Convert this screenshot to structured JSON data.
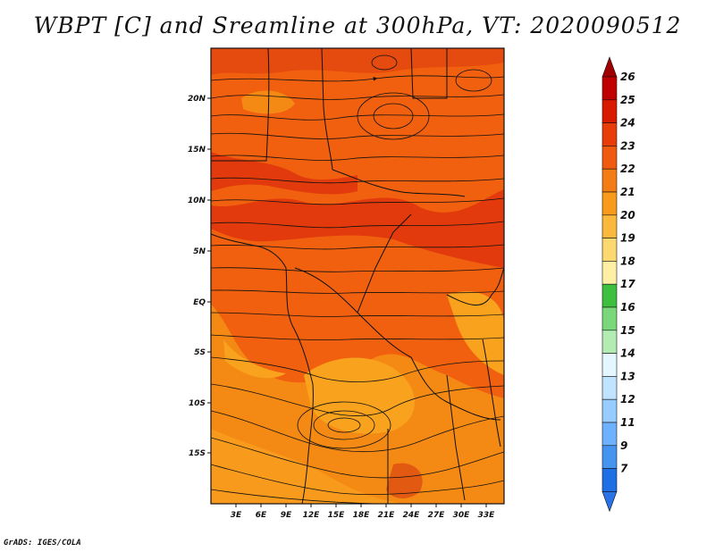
{
  "title": "WBPT [C] and Sreamline at 300hPa, VT: 2020090512",
  "credit": "GrADS: IGES/COLA",
  "map": {
    "lat_labels": [
      "20N",
      "15N",
      "10N",
      "5N",
      "EQ",
      "5S",
      "10S",
      "15S"
    ],
    "lon_labels": [
      "3E",
      "6E",
      "9E",
      "12E",
      "15E",
      "18E",
      "21E",
      "24E",
      "27E",
      "30E",
      "33E"
    ]
  },
  "colorbar": {
    "labels": [
      "26",
      "25",
      "24",
      "23",
      "22",
      "21",
      "20",
      "19",
      "18",
      "17",
      "16",
      "15",
      "14",
      "13",
      "12",
      "11",
      "9",
      "7"
    ],
    "colors": [
      "#c00000",
      "#d81a00",
      "#e83c0a",
      "#f05a10",
      "#f47c14",
      "#f89a1c",
      "#fab93c",
      "#fcd870",
      "#fdf0a4",
      "#3fbf3f",
      "#7ad77a",
      "#b2ecb2",
      "#e4f6ff",
      "#c0e4ff",
      "#96ccff",
      "#6eb2ff",
      "#4494f0",
      "#1e6ee6"
    ],
    "top_arrow_color": "#a00000",
    "bottom_arrow_color": "#2a72e8"
  },
  "field_colors": {
    "dark": "#e23a0c",
    "mid": "#f0600f",
    "light": "#f48a14",
    "pale": "#f8a21e"
  }
}
